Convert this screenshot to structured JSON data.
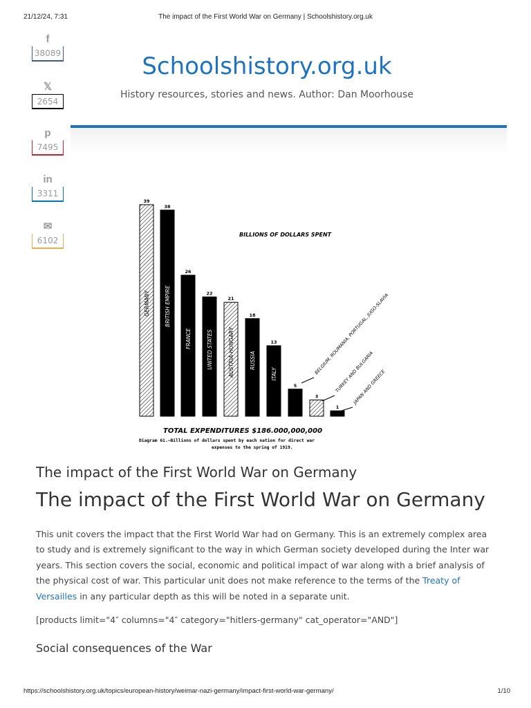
{
  "print": {
    "date": "21/12/24, 7:31",
    "title": "The impact of the First World War on Germany | Schoolshistory.org.uk",
    "url": "https://schoolshistory.org.uk/topics/european-history/weimar-nazi-germany/impact-first-world-war-germany/",
    "page": "1/10"
  },
  "share": [
    {
      "icon": "facebook-icon",
      "glyph": "f",
      "count": "38089",
      "color": "#3b5998"
    },
    {
      "icon": "x-twitter-icon",
      "glyph": "𝕏",
      "count": "2654",
      "color": "#000000"
    },
    {
      "icon": "pinterest-icon",
      "glyph": "p",
      "count": "7495",
      "color": "#cb2027"
    },
    {
      "icon": "linkedin-icon",
      "glyph": "in",
      "count": "3311",
      "color": "#0077b5"
    },
    {
      "icon": "email-icon",
      "glyph": "✉",
      "count": "6102",
      "color": "#e3b04b"
    }
  ],
  "site": {
    "title": "Schoolshistory.org.uk",
    "description": "History resources, stories and news. Author: Dan Moorhouse"
  },
  "chart_data": {
    "type": "bar",
    "title": "BILLIONS OF DOLLARS SPENT",
    "categories": [
      "GERMANY",
      "BRITISH EMPIRE",
      "FRANCE",
      "UNITED STATES",
      "AUSTRIA-HUNGARY",
      "RUSSIA",
      "ITALY",
      "BELGIUM, ROUMANIA, PORTUGAL, JUGO-SLAVIA",
      "TURKEY AND BULGARIA",
      "JAPAN AND GREECE"
    ],
    "values": [
      39,
      38,
      26,
      22,
      21,
      18,
      13,
      5,
      3,
      1
    ],
    "value_labels": [
      "39",
      "38",
      "26",
      "22",
      "21",
      "18",
      "13",
      "5",
      "3",
      "1"
    ],
    "hatched": [
      true,
      false,
      false,
      false,
      true,
      false,
      false,
      false,
      true,
      false
    ],
    "total": "TOTAL EXPENDITURES $186.000,000,000",
    "caption_line1": "Diagram 61.—Billions of dollars spent by each nation for direct war",
    "caption_line2": "expenses to the spring of 1919.",
    "ylim": [
      0,
      39
    ]
  },
  "article": {
    "subtitle": "The impact of the First World War on Germany",
    "title": "The impact of the First World War on Germany",
    "para_before_link": "This unit covers the impact that the First World War had on Germany. This is an extremely complex area to study and is extremely significant to the way in which German society developed during the Inter war years. This section covers the social, economic and political impact of war along with a brief analysis of the physical cost of war. This particular unit does not make reference to the terms of the ",
    "link_text": "Treaty of Versailles",
    "para_after_link": " in any particular depth as this will be noted in a separate unit.",
    "shortcode": "[products limit=\"4″ columns=\"4″ category=\"hitlers-germany\" cat_operator=\"AND\"]",
    "section_heading": "Social consequences of the War"
  }
}
